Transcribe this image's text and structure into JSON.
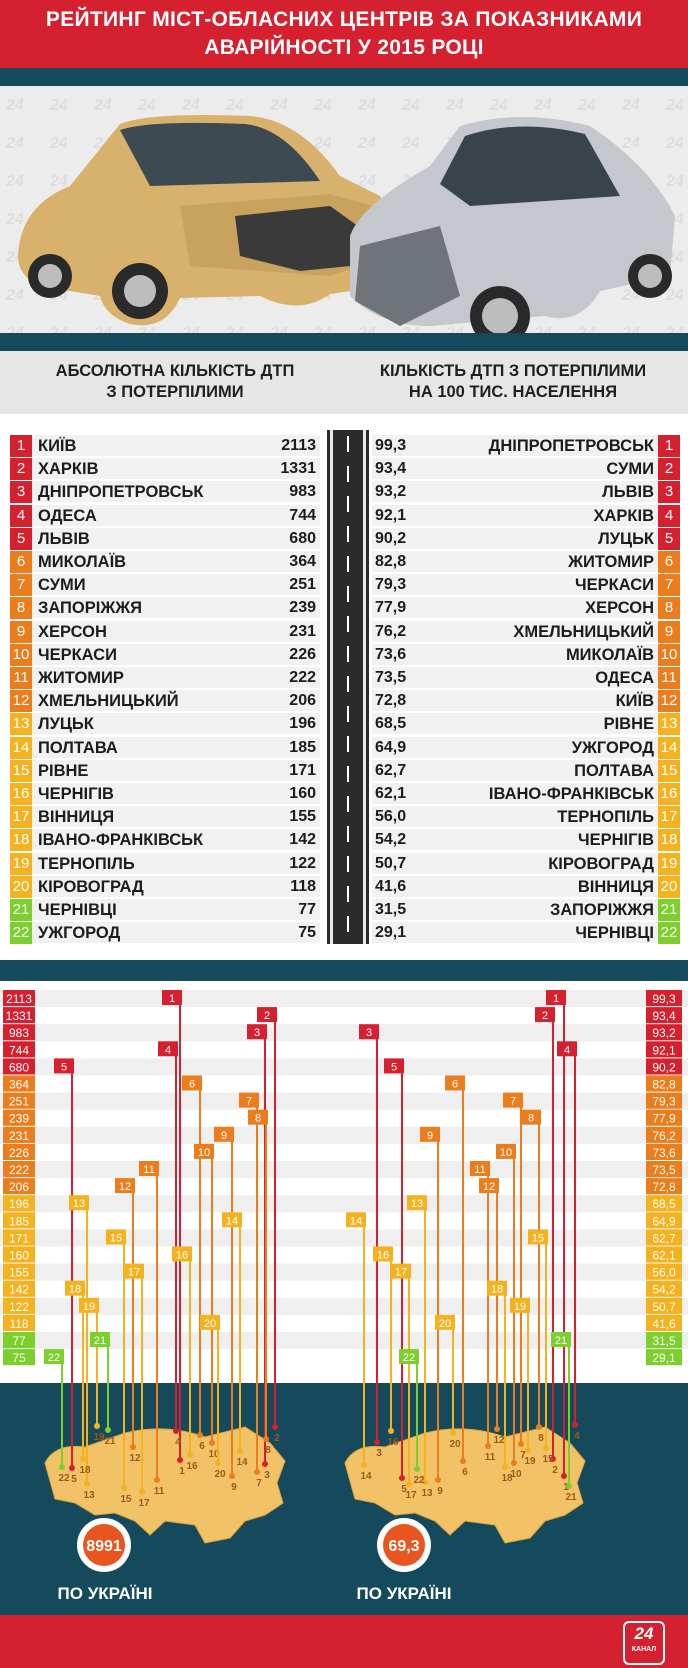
{
  "title_line1": "РЕЙТИНГ МІСТ-ОБЛАСНИХ ЦЕНТРІВ ЗА ПОКАЗНИКАМИ",
  "title_line2": "АВАРІЙНОСТІ У 2015 РОЦІ",
  "left_heading_line1": "АБСОЛЮТНА КІЛЬКІСТЬ ДТП",
  "left_heading_line2": "З ПОТЕРПІЛИМИ",
  "right_heading_line1": "КІЛЬКІСТЬ ДТП З ПОТЕРПІЛИМИ",
  "right_heading_line2": "НА 100 ТИС. НАСЕЛЕННЯ",
  "total_absolute": "8991",
  "total_per100k": "69,3",
  "total_label": "ПО УКРАЇНІ",
  "logo_number": "24",
  "logo_word": "КАНАЛ",
  "rank_colors": [
    "#d4202f",
    "#d4202f",
    "#d4202f",
    "#d4202f",
    "#d4202f",
    "#ec7d1d",
    "#ec7d1d",
    "#ec7d1d",
    "#ec7d1d",
    "#ec7d1d",
    "#ec7d1d",
    "#ec7d1d",
    "#f3b21e",
    "#f3b21e",
    "#f3b21e",
    "#f3b21e",
    "#f3b21e",
    "#f3b21e",
    "#f3b21e",
    "#f3b21e",
    "#7ccf2c",
    "#7ccf2c"
  ],
  "chart_data": [
    {
      "type": "table",
      "title": "АБСОЛЮТНА КІЛЬКІСТЬ ДТП З ПОТЕРПІЛИМИ",
      "categories": [
        "КИЇВ",
        "ХАРКІВ",
        "ДНІПРОПЕТРОВСЬК",
        "ОДЕСА",
        "ЛЬВІВ",
        "МИКОЛАЇВ",
        "СУМИ",
        "ЗАПОРІЖЖЯ",
        "ХЕРСОН",
        "ЧЕРКАСИ",
        "ЖИТОМИР",
        "ХМЕЛЬНИЦЬКИЙ",
        "ЛУЦЬК",
        "ПОЛТАВА",
        "РІВНЕ",
        "ЧЕРНІГІВ",
        "ВІННИЦЯ",
        "ІВАНО-ФРАНКІВСЬК",
        "ТЕРНОПІЛЬ",
        "КІРОВОГРАД",
        "ЧЕРНІВЦІ",
        "УЖГОРОД"
      ],
      "values": [
        2113,
        1331,
        983,
        744,
        680,
        364,
        251,
        239,
        231,
        226,
        222,
        206,
        196,
        185,
        171,
        160,
        155,
        142,
        122,
        118,
        77,
        75
      ]
    },
    {
      "type": "table",
      "title": "КІЛЬКІСТЬ ДТП З ПОТЕРПІЛИМИ НА 100 ТИС. НАСЕЛЕННЯ",
      "categories": [
        "ДНІПРОПЕТРОВСЬК",
        "СУМИ",
        "ЛЬВІВ",
        "ХАРКІВ",
        "ЛУЦЬК",
        "ЖИТОМИР",
        "ЧЕРКАСИ",
        "ХЕРСОН",
        "ХМЕЛЬНИЦЬКИЙ",
        "МИКОЛАЇВ",
        "ОДЕСА",
        "КИЇВ",
        "РІВНЕ",
        "УЖГОРОД",
        "ПОЛТАВА",
        "ІВАНО-ФРАНКІВСЬК",
        "ТЕРНОПІЛЬ",
        "ЧЕРНІГІВ",
        "КІРОВОГРАД",
        "ВІННИЦЯ",
        "ЗАПОРІЖЖЯ",
        "ЧЕРНІВЦІ"
      ],
      "values": [
        99.3,
        93.4,
        93.2,
        92.1,
        90.2,
        82.8,
        79.3,
        77.9,
        76.2,
        73.6,
        73.5,
        72.8,
        68.5,
        64.9,
        62.7,
        62.1,
        56.0,
        54.2,
        50.7,
        41.6,
        31.5,
        29.1
      ],
      "value_labels": [
        "99,3",
        "93,4",
        "93,2",
        "92,1",
        "90,2",
        "82,8",
        "79,3",
        "77,9",
        "76,2",
        "73,6",
        "73,5",
        "72,8",
        "68,5",
        "64,9",
        "62,7",
        "62,1",
        "56,0",
        "54,2",
        "50,7",
        "41,6",
        "31,5",
        "29,1"
      ]
    }
  ]
}
